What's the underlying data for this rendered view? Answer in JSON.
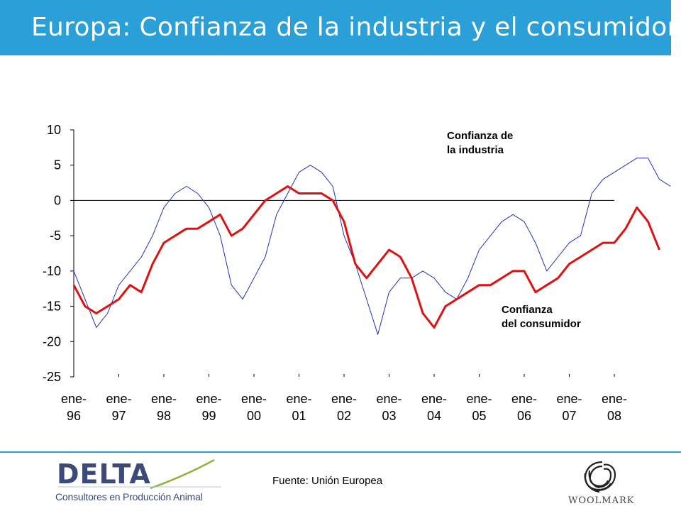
{
  "title": "Europa: Confianza de la industria y el consumidor",
  "source": "Fuente: Unión Europea",
  "logos": {
    "delta": {
      "name": "DELTA",
      "subtitle": "Consultores en Producción Animal"
    },
    "woolmark": {
      "name": "WOOLMARK"
    }
  },
  "colors": {
    "title_bar": "#2a9fd8",
    "industry_line": "#1f2fc0",
    "consumer_line": "#e01010",
    "text": "#000000"
  },
  "chart_data": {
    "type": "line",
    "title": "",
    "xlabel": "",
    "ylabel": "",
    "ylim": [
      -25,
      10
    ],
    "yticks": [
      10,
      5,
      0,
      -5,
      -10,
      -15,
      -20,
      -25
    ],
    "grid": false,
    "xtick_labels": [
      [
        "ene-",
        "96"
      ],
      [
        "ene-",
        "97"
      ],
      [
        "ene-",
        "98"
      ],
      [
        "ene-",
        "99"
      ],
      [
        "ene-",
        "00"
      ],
      [
        "ene-",
        "01"
      ],
      [
        "ene-",
        "02"
      ],
      [
        "ene-",
        "03"
      ],
      [
        "ene-",
        "04"
      ],
      [
        "ene-",
        "05"
      ],
      [
        "ene-",
        "06"
      ],
      [
        "ene-",
        "07"
      ],
      [
        "ene-",
        "08"
      ]
    ],
    "x_start": "1996-01",
    "x_step": "quarter",
    "series": [
      {
        "name": "Confianza de la industria",
        "color": "#1f2fc0",
        "values": [
          -10,
          -14,
          -18,
          -16,
          -12,
          -10,
          -8,
          -5,
          -1,
          1,
          2,
          1,
          -1,
          -5,
          -12,
          -14,
          -11,
          -8,
          -2,
          1,
          4,
          5,
          4,
          2,
          -5,
          -9,
          -14,
          -19,
          -13,
          -11,
          -11,
          -10,
          -11,
          -13,
          -14,
          -11,
          -7,
          -5,
          -3,
          -2,
          -3,
          -6,
          -10,
          -8,
          -6,
          -5,
          1,
          3,
          4,
          5,
          6,
          6,
          3,
          2
        ]
      },
      {
        "name": "Confianza del consumidor",
        "color": "#e01010",
        "values": [
          -12,
          -15,
          -16,
          -15,
          -14,
          -12,
          -13,
          -9,
          -6,
          -5,
          -4,
          -4,
          -3,
          -2,
          -5,
          -4,
          -2,
          0,
          1,
          2,
          1,
          1,
          1,
          0,
          -3,
          -9,
          -11,
          -9,
          -7,
          -8,
          -11,
          -16,
          -18,
          -15,
          -14,
          -13,
          -12,
          -12,
          -11,
          -10,
          -10,
          -13,
          -12,
          -11,
          -9,
          -8,
          -7,
          -6,
          -6,
          -4,
          -1,
          -3,
          -7
        ]
      }
    ],
    "annotations": [
      {
        "lines": [
          "Confianza de",
          "la industria"
        ],
        "series": 0
      },
      {
        "lines": [
          "Confianza",
          "del consumidor"
        ],
        "series": 1
      }
    ]
  }
}
